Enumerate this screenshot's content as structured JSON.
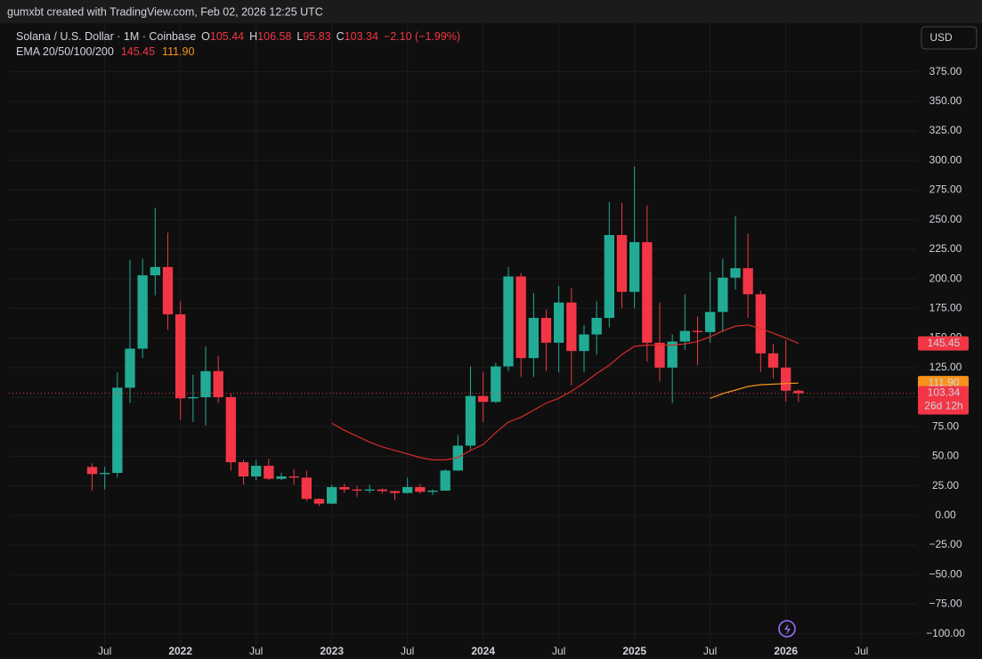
{
  "top_bar": "gumxbt created with TradingView.com, Feb 02, 2026 12:25 UTC",
  "currency_button": "USD",
  "header": {
    "symbol": "Solana / U.S. Dollar · 1M · Coinbase",
    "o": "O",
    "h": "H",
    "l": "L",
    "c": "C",
    "change": "−2.10 (−1.99%)",
    "indicator": "EMA 20/50/100/200"
  },
  "countdown": "26d 12h",
  "chart_data": {
    "type": "candlestick",
    "up_color": "#22ab94",
    "down_color": "#f23645",
    "open": [
      41,
      35,
      36,
      108,
      141,
      203,
      210,
      170,
      99,
      100,
      122,
      100,
      45,
      33,
      42,
      31,
      33,
      32,
      14,
      10,
      24,
      22,
      21,
      22,
      20.6,
      19,
      24,
      20,
      21,
      38,
      59,
      101,
      96,
      126,
      202,
      133,
      167,
      146,
      180,
      139,
      153,
      167,
      237,
      189,
      231,
      146,
      125,
      147,
      156,
      155,
      172,
      201,
      209,
      187,
      137,
      125,
      105.44
    ],
    "high": [
      44,
      41,
      121,
      216,
      217,
      260,
      239,
      181,
      119,
      143,
      135,
      103,
      47,
      47,
      48,
      36,
      39,
      38,
      14.5,
      26,
      27,
      25,
      26,
      23,
      21,
      32,
      26.5,
      22,
      39,
      68,
      126,
      121,
      129,
      210,
      205,
      188,
      174,
      194,
      192,
      161,
      181,
      265,
      264,
      295,
      262,
      180,
      153,
      187,
      168,
      206,
      217,
      253,
      238,
      190,
      145,
      148,
      106.58
    ],
    "low": [
      21,
      22,
      32,
      95,
      133,
      186,
      157,
      81,
      79,
      76,
      95,
      38,
      26,
      30,
      30,
      30,
      26,
      12,
      8,
      9.6,
      19,
      15.8,
      19,
      18.6,
      13,
      18.6,
      18.6,
      17.3,
      20.9,
      37.6,
      56,
      79,
      95,
      122,
      117,
      117,
      122,
      121,
      110,
      121,
      136,
      159,
      175,
      175,
      130,
      113,
      95,
      140,
      127,
      146,
      155,
      191,
      167,
      121,
      116,
      96,
      95.83
    ],
    "close": [
      35,
      36,
      108,
      141,
      203,
      210,
      170,
      99,
      100,
      122,
      100,
      45,
      33,
      42,
      31,
      33,
      32,
      14,
      10,
      24,
      22,
      21,
      22,
      20.6,
      19,
      24,
      20,
      21,
      38,
      59,
      101,
      96,
      126,
      202,
      133,
      167,
      146,
      180,
      139,
      153,
      167,
      237,
      189,
      231,
      146,
      125,
      147,
      156,
      155,
      172,
      201,
      209,
      187,
      137,
      125,
      105.44,
      103.34
    ],
    "series": [
      {
        "color": "#d62b2b",
        "last_value_label": "145.45",
        "values": [
          null,
          null,
          null,
          null,
          null,
          null,
          null,
          null,
          null,
          null,
          null,
          null,
          null,
          null,
          null,
          null,
          null,
          null,
          null,
          78,
          72,
          67,
          62,
          58,
          55,
          52,
          49,
          47,
          47,
          49,
          55,
          60,
          70,
          79,
          83,
          89,
          95,
          99,
          105,
          112,
          120,
          127,
          136,
          143,
          144,
          144,
          144,
          145,
          147,
          151,
          156,
          160,
          161,
          158,
          154,
          150,
          145.45
        ]
      },
      {
        "color": "#f7931a",
        "last_value_label": "111.90",
        "values": [
          null,
          null,
          null,
          null,
          null,
          null,
          null,
          null,
          null,
          null,
          null,
          null,
          null,
          null,
          null,
          null,
          null,
          null,
          null,
          null,
          null,
          null,
          null,
          null,
          null,
          null,
          null,
          null,
          null,
          null,
          null,
          null,
          null,
          null,
          null,
          null,
          null,
          null,
          null,
          null,
          null,
          null,
          null,
          null,
          null,
          null,
          null,
          null,
          null,
          99,
          103,
          106,
          109,
          110.5,
          111,
          111.5,
          111.9
        ]
      }
    ],
    "xlim": [
      -6.6,
      65.4
    ],
    "xticks": [
      {
        "value": 1,
        "label": "Jul"
      },
      {
        "value": 7,
        "label": "2022"
      },
      {
        "value": 13,
        "label": "Jul"
      },
      {
        "value": 19,
        "label": "2023"
      },
      {
        "value": 25,
        "label": "Jul"
      },
      {
        "value": 31,
        "label": "2024"
      },
      {
        "value": 37,
        "label": "Jul"
      },
      {
        "value": 43,
        "label": "2025"
      },
      {
        "value": 49,
        "label": "Jul"
      },
      {
        "value": 55,
        "label": "2026"
      },
      {
        "value": 61,
        "label": "Jul"
      }
    ],
    "ylim": [
      -110,
      389
    ],
    "yticks": [
      {
        "value": 375,
        "label": "375.00"
      },
      {
        "value": 350,
        "label": "350.00"
      },
      {
        "value": 325,
        "label": "325.00"
      },
      {
        "value": 300,
        "label": "300.00"
      },
      {
        "value": 275,
        "label": "275.00"
      },
      {
        "value": 250,
        "label": "250.00"
      },
      {
        "value": 225,
        "label": "225.00"
      },
      {
        "value": 200,
        "label": "200.00"
      },
      {
        "value": 175,
        "label": "175.00"
      },
      {
        "value": 150,
        "label": "150.00"
      },
      {
        "value": 125,
        "label": "125.00"
      },
      {
        "value": 100,
        "label": "100.00"
      },
      {
        "value": 75,
        "label": "75.00"
      },
      {
        "value": 50,
        "label": "50.00"
      },
      {
        "value": 25,
        "label": "25.00"
      },
      {
        "value": 0,
        "label": "0.00"
      },
      {
        "value": -25,
        "label": "−25.00"
      },
      {
        "value": -50,
        "label": "−50.00"
      },
      {
        "value": -75,
        "label": "−75.00"
      },
      {
        "value": -100,
        "label": "−100.00"
      }
    ],
    "grid": true
  }
}
